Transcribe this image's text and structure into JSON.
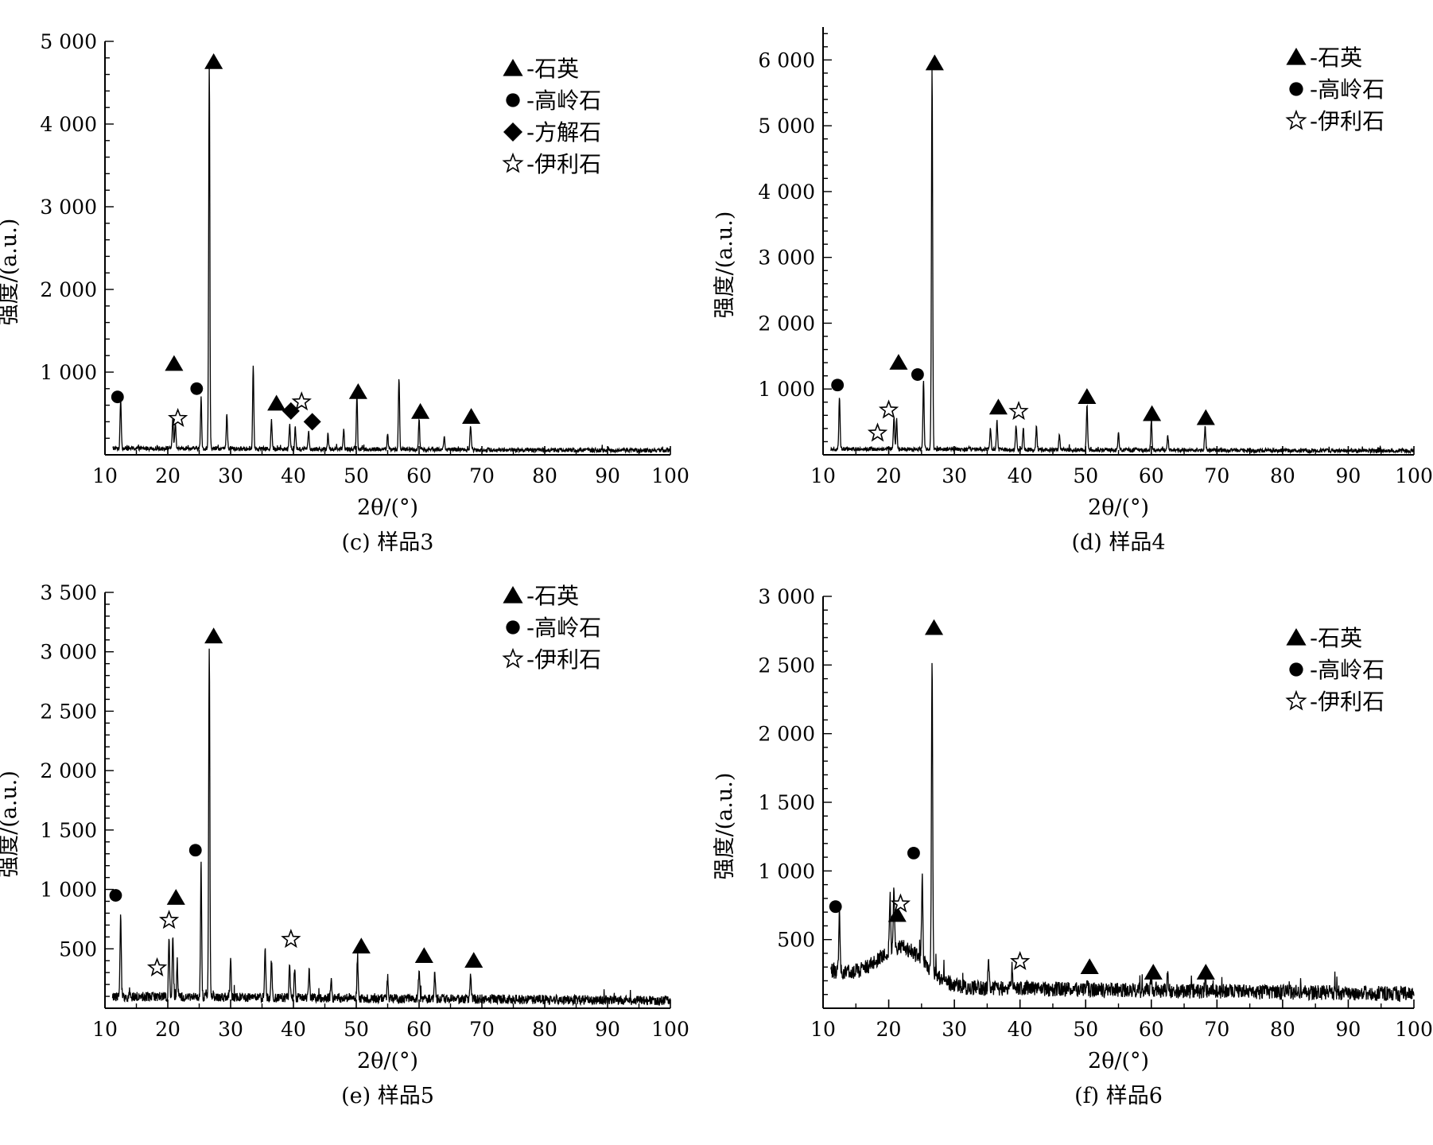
{
  "chart_data": [
    {
      "type": "line",
      "caption": "(c) 样品3",
      "xlabel": "2θ/(°)",
      "ylabel": "强度/(a.u.)",
      "xlim": [
        10,
        100
      ],
      "ylim": [
        0,
        5000
      ],
      "xticks": [
        10,
        20,
        30,
        40,
        50,
        60,
        70,
        80,
        90,
        100
      ],
      "yticks": [
        1000,
        2000,
        3000,
        4000,
        5000
      ],
      "ytick_labels": [
        "1 000",
        "2 000",
        "3 000",
        "4 000",
        "5 000"
      ],
      "baseline": 80,
      "noise": 25,
      "peaks": [
        [
          12.5,
          600
        ],
        [
          20.8,
          380
        ],
        [
          21.2,
          300
        ],
        [
          25.3,
          620
        ],
        [
          26.6,
          4650
        ],
        [
          29.4,
          420
        ],
        [
          33.6,
          1010
        ],
        [
          36.5,
          350
        ],
        [
          39.4,
          300
        ],
        [
          40.3,
          260
        ],
        [
          42.4,
          220
        ],
        [
          45.5,
          200
        ],
        [
          48.0,
          240
        ],
        [
          50.1,
          650
        ],
        [
          55.0,
          180
        ],
        [
          56.8,
          880
        ],
        [
          60.0,
          360
        ],
        [
          64.0,
          150
        ],
        [
          68.2,
          300
        ]
      ],
      "markers": [
        {
          "symbol": "triangle",
          "x": 21.0,
          "y": 1100
        },
        {
          "symbol": "triangle",
          "x": 27.3,
          "y": 4750
        },
        {
          "symbol": "triangle",
          "x": 37.3,
          "y": 620
        },
        {
          "symbol": "triangle",
          "x": 50.3,
          "y": 760
        },
        {
          "symbol": "triangle",
          "x": 60.2,
          "y": 520
        },
        {
          "symbol": "triangle",
          "x": 68.3,
          "y": 460
        },
        {
          "symbol": "circle",
          "x": 12.0,
          "y": 700
        },
        {
          "symbol": "circle",
          "x": 24.6,
          "y": 800
        },
        {
          "symbol": "star",
          "x": 21.6,
          "y": 440
        },
        {
          "symbol": "star",
          "x": 41.3,
          "y": 640
        },
        {
          "symbol": "diamond",
          "x": 39.6,
          "y": 530
        },
        {
          "symbol": "diamond",
          "x": 43.0,
          "y": 400
        }
      ],
      "legend": [
        {
          "symbol": "triangle",
          "label": "-石英"
        },
        {
          "symbol": "circle",
          "label": "-高岭石"
        },
        {
          "symbol": "diamond",
          "label": "-方解石"
        },
        {
          "symbol": "star",
          "label": "-伊利石"
        }
      ],
      "legend_position": "top-right"
    },
    {
      "type": "line",
      "caption": "(d) 样品4",
      "xlabel": "2θ/(°)",
      "ylabel": "强度/(a.u.)",
      "xlim": [
        10,
        100
      ],
      "ylim": [
        0,
        6500
      ],
      "xticks": [
        10,
        20,
        30,
        40,
        50,
        60,
        70,
        80,
        90,
        100
      ],
      "yticks": [
        1000,
        2000,
        3000,
        4000,
        5000,
        6000
      ],
      "ytick_labels": [
        "1 000",
        "2 000",
        "3 000",
        "4 000",
        "5 000",
        "6 000"
      ],
      "baseline": 90,
      "noise": 30,
      "peaks": [
        [
          12.5,
          800
        ],
        [
          20.8,
          500
        ],
        [
          21.2,
          450
        ],
        [
          25.3,
          1050
        ],
        [
          26.6,
          5800
        ],
        [
          35.5,
          320
        ],
        [
          36.5,
          420
        ],
        [
          39.4,
          360
        ],
        [
          40.5,
          330
        ],
        [
          42.5,
          350
        ],
        [
          46.0,
          230
        ],
        [
          50.2,
          660
        ],
        [
          55.0,
          250
        ],
        [
          60.0,
          450
        ],
        [
          62.5,
          230
        ],
        [
          68.2,
          350
        ]
      ],
      "markers": [
        {
          "symbol": "triangle",
          "x": 21.5,
          "y": 1400
        },
        {
          "symbol": "triangle",
          "x": 27.0,
          "y": 5950
        },
        {
          "symbol": "triangle",
          "x": 36.7,
          "y": 720
        },
        {
          "symbol": "triangle",
          "x": 50.2,
          "y": 880
        },
        {
          "symbol": "triangle",
          "x": 60.1,
          "y": 620
        },
        {
          "symbol": "triangle",
          "x": 68.3,
          "y": 560
        },
        {
          "symbol": "circle",
          "x": 12.2,
          "y": 1060
        },
        {
          "symbol": "circle",
          "x": 24.4,
          "y": 1220
        },
        {
          "symbol": "star",
          "x": 18.3,
          "y": 330
        },
        {
          "symbol": "star",
          "x": 20.0,
          "y": 680
        },
        {
          "symbol": "star",
          "x": 39.8,
          "y": 660
        }
      ],
      "legend": [
        {
          "symbol": "triangle",
          "label": "-石英"
        },
        {
          "symbol": "circle",
          "label": "-高岭石"
        },
        {
          "symbol": "star",
          "label": "-伊利石"
        }
      ],
      "legend_position": "top-right"
    },
    {
      "type": "line",
      "caption": "(e) 样品5",
      "xlabel": "2θ/(°)",
      "ylabel": "强度/(a.u.)",
      "xlim": [
        10,
        100
      ],
      "ylim": [
        0,
        3500
      ],
      "xticks": [
        10,
        20,
        30,
        40,
        50,
        60,
        70,
        80,
        90,
        100
      ],
      "yticks": [
        500,
        1000,
        1500,
        2000,
        2500,
        3000,
        3500
      ],
      "ytick_labels": [
        "500",
        "1 000",
        "1 500",
        "2 000",
        "2 500",
        "3 000",
        "3 500"
      ],
      "baseline": 100,
      "noise": 40,
      "peaks": [
        [
          12.5,
          700
        ],
        [
          20.2,
          500
        ],
        [
          20.8,
          550
        ],
        [
          21.5,
          300
        ],
        [
          25.3,
          1120
        ],
        [
          26.6,
          2980
        ],
        [
          30.0,
          300
        ],
        [
          35.5,
          400
        ],
        [
          36.5,
          300
        ],
        [
          39.4,
          300
        ],
        [
          40.2,
          270
        ],
        [
          42.5,
          220
        ],
        [
          46.0,
          150
        ],
        [
          50.2,
          360
        ],
        [
          55.0,
          180
        ],
        [
          60.0,
          240
        ],
        [
          62.5,
          230
        ],
        [
          68.2,
          230
        ]
      ],
      "markers": [
        {
          "symbol": "triangle",
          "x": 21.3,
          "y": 930
        },
        {
          "symbol": "triangle",
          "x": 27.3,
          "y": 3130
        },
        {
          "symbol": "triangle",
          "x": 50.8,
          "y": 520
        },
        {
          "symbol": "triangle",
          "x": 60.8,
          "y": 440
        },
        {
          "symbol": "triangle",
          "x": 68.7,
          "y": 400
        },
        {
          "symbol": "circle",
          "x": 11.7,
          "y": 950
        },
        {
          "symbol": "circle",
          "x": 24.4,
          "y": 1330
        },
        {
          "symbol": "star",
          "x": 18.3,
          "y": 340
        },
        {
          "symbol": "star",
          "x": 20.2,
          "y": 740
        },
        {
          "symbol": "star",
          "x": 39.6,
          "y": 580
        }
      ],
      "legend": [
        {
          "symbol": "triangle",
          "label": "-石英"
        },
        {
          "symbol": "circle",
          "label": "-高岭石"
        },
        {
          "symbol": "star",
          "label": "-伊利石"
        }
      ],
      "legend_position": "top-right"
    },
    {
      "type": "line",
      "caption": "(f) 样品6",
      "xlabel": "2θ/(°)",
      "ylabel": "强度/(a.u.)",
      "xlim": [
        10,
        100
      ],
      "ylim": [
        0,
        3000
      ],
      "xticks": [
        10,
        20,
        30,
        40,
        50,
        60,
        70,
        80,
        90,
        100
      ],
      "yticks": [
        500,
        1000,
        1500,
        2000,
        2500,
        3000
      ],
      "ytick_labels": [
        "500",
        "1 000",
        "1 500",
        "2 000",
        "2 500",
        "3 000"
      ],
      "baseline": 160,
      "noise": 55,
      "humps": [
        [
          10,
          110,
          8
        ],
        [
          22,
          280,
          5
        ]
      ],
      "peaks": [
        [
          12.5,
          450
        ],
        [
          20.2,
          400
        ],
        [
          20.8,
          450
        ],
        [
          25.1,
          600
        ],
        [
          26.6,
          2300
        ],
        [
          35.2,
          220
        ],
        [
          38.8,
          160
        ],
        [
          50.2,
          100
        ],
        [
          60.0,
          120
        ],
        [
          62.5,
          140
        ],
        [
          68.2,
          110
        ]
      ],
      "markers": [
        {
          "symbol": "triangle",
          "x": 21.3,
          "y": 680
        },
        {
          "symbol": "triangle",
          "x": 26.9,
          "y": 2770
        },
        {
          "symbol": "triangle",
          "x": 50.6,
          "y": 300
        },
        {
          "symbol": "triangle",
          "x": 60.3,
          "y": 260
        },
        {
          "symbol": "triangle",
          "x": 68.3,
          "y": 260
        },
        {
          "symbol": "circle",
          "x": 11.9,
          "y": 740
        },
        {
          "symbol": "circle",
          "x": 23.8,
          "y": 1130
        },
        {
          "symbol": "star",
          "x": 21.8,
          "y": 760
        },
        {
          "symbol": "star",
          "x": 40.0,
          "y": 340
        }
      ],
      "legend": [
        {
          "symbol": "triangle",
          "label": "-石英"
        },
        {
          "symbol": "circle",
          "label": "-高岭石"
        },
        {
          "symbol": "star",
          "label": "-伊利石"
        }
      ],
      "legend_position": "top-right"
    }
  ]
}
